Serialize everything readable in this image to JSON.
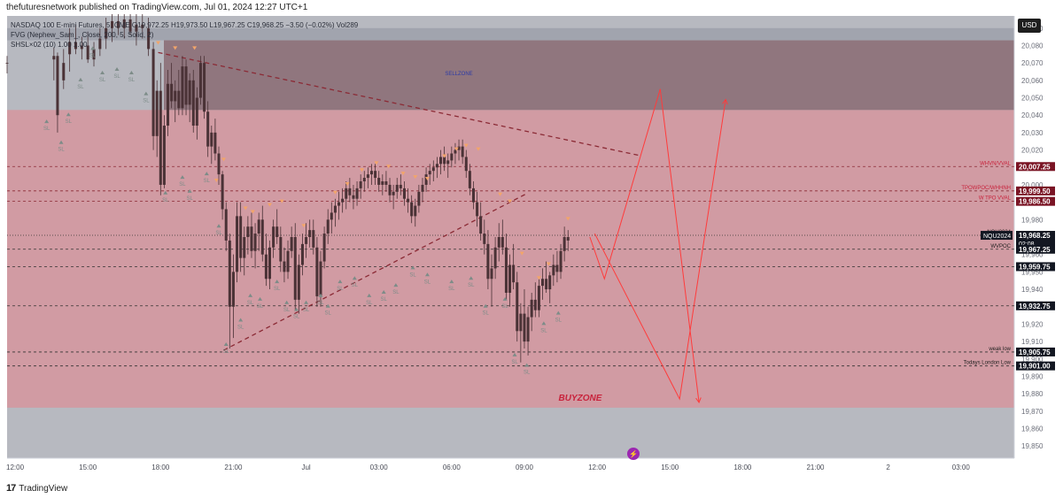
{
  "header": {
    "publisher": "thefuturesnetwork published on TradingView.com, Jul 01, 2024 12:27 UTC+1"
  },
  "legend": {
    "symbol_line": "NASDAQ 100 E-mini Futures, 5, CME  O19,972.25 H19,973.50 L19,967.25 C19,968.25 −3.50 (−0.02%) Vol289",
    "fvg_line": "FVG (Nephew_Sam_, Close, 200, 5, Solid, 2)",
    "shsl_line": "SHSL×02 (10)  1.00  1.00"
  },
  "currency": "USD",
  "footer": {
    "brand": "TradingView",
    "logo": "tradingview-logo-icon"
  },
  "colors": {
    "zone_pink": "#d19ba3",
    "sellzone_dark": "#8a6a72",
    "grey_band": "#b7b9c0",
    "candle": "#4a3236",
    "dashed_line": "#8b2a35",
    "projection": "#ff3b3b",
    "orange_marker": "#f2a56a",
    "grey_marker": "#7d8c88",
    "label_red": "#c8233c",
    "badge_dark": "#7a1424",
    "badge_black": "#131722"
  },
  "chart_data": {
    "type": "candlestick",
    "symbol": "NQU2024",
    "timeframe": "5",
    "ylim": [
      19843,
      20097
    ],
    "y_ticks": [
      20090,
      20080,
      20070,
      20060,
      20050,
      20040,
      20030,
      20020,
      20010,
      20000,
      19990,
      19980,
      19970,
      19960,
      19950,
      19940,
      19930,
      19920,
      19910,
      19900,
      19890,
      19880,
      19870,
      19860,
      19850
    ],
    "x_ticks": [
      {
        "label": "12:00",
        "t": 0
      },
      {
        "label": "15:00",
        "t": 3
      },
      {
        "label": "18:00",
        "t": 6
      },
      {
        "label": "21:00",
        "t": 9
      },
      {
        "label": "Jul",
        "t": 12
      },
      {
        "label": "03:00",
        "t": 15
      },
      {
        "label": "06:00",
        "t": 18
      },
      {
        "label": "09:00",
        "t": 21
      },
      {
        "label": "12:00",
        "t": 24
      },
      {
        "label": "15:00",
        "t": 27
      },
      {
        "label": "18:00",
        "t": 30
      },
      {
        "label": "21:00",
        "t": 33
      },
      {
        "label": "2",
        "t": 36
      },
      {
        "label": "03:00",
        "t": 39
      }
    ],
    "xlim": [
      -0.33,
      41.2
    ],
    "zones": [
      {
        "name": "SELLZONE",
        "from": 20043,
        "to": 20083
      },
      {
        "name": "BUYZONE",
        "from": 19872,
        "to": 20043
      }
    ],
    "levels": [
      {
        "label": "WHVN/VVAL",
        "price": 20010.5,
        "badge": "20,007.25"
      },
      {
        "label": "TPOWPOC/WHHNH",
        "price": 19996.5,
        "badge": "19,999.50"
      },
      {
        "label": "W TPO VVAL",
        "price": 19990.5,
        "badge": "19,986.50"
      },
      {
        "label": "NQU2024",
        "price": 19971,
        "badge": "19,968.25",
        "extra": "02:08"
      },
      {
        "label": "WVPOC",
        "price": 19963,
        "badge": "19,967.25"
      },
      {
        "label": "",
        "price": 19953,
        "badge": "19,959.75"
      },
      {
        "label": "",
        "price": 19930.5,
        "badge": "19,932.75"
      },
      {
        "label": "weak low",
        "price": 19904,
        "badge": "19,905.75"
      },
      {
        "label": "Todays London Low",
        "price": 19896,
        "badge": "19,901.00"
      }
    ],
    "trendlines": [
      {
        "from": [
          5.9,
          20076
        ],
        "to": [
          25.7,
          20017
        ]
      },
      {
        "from": [
          8.6,
          19905
        ],
        "to": [
          21.1,
          19995
        ]
      }
    ],
    "projections": [
      [
        [
          23.9,
          19972
        ],
        [
          27.4,
          19877
        ],
        [
          29.3,
          20049
        ]
      ],
      [
        [
          23.7,
          19970
        ],
        [
          24.3,
          19946
        ],
        [
          26.6,
          20055
        ],
        [
          28.2,
          19875
        ]
      ]
    ],
    "candles": [
      [
        -0.33,
        20070,
        20074,
        20064,
        20070
      ],
      [
        1.6,
        20072,
        20079,
        20060,
        20074
      ],
      [
        1.75,
        20074,
        20076,
        20030,
        20040
      ],
      [
        2.0,
        20060,
        20078,
        20055,
        20070
      ],
      [
        2.25,
        20075,
        20090,
        20065,
        20082
      ],
      [
        2.5,
        20082,
        20092,
        20075,
        20078
      ],
      [
        2.75,
        20078,
        20085,
        20072,
        20080
      ],
      [
        3.0,
        20080,
        20088,
        20070,
        20072
      ],
      [
        3.25,
        20072,
        20082,
        20068,
        20078
      ],
      [
        3.5,
        20078,
        20090,
        20074,
        20084
      ],
      [
        3.75,
        20084,
        20096,
        20078,
        20090
      ],
      [
        4.0,
        20090,
        20100,
        20082,
        20094
      ],
      [
        4.25,
        20094,
        20100,
        20086,
        20090
      ],
      [
        4.5,
        20090,
        20100,
        20084,
        20095
      ],
      [
        4.75,
        20095,
        20100,
        20086,
        20088
      ],
      [
        5.0,
        20088,
        20098,
        20080,
        20092
      ],
      [
        5.25,
        20092,
        20100,
        20084,
        20090
      ],
      [
        5.5,
        20090,
        20096,
        20074,
        20078
      ],
      [
        5.7,
        20078,
        20082,
        20020,
        20028
      ],
      [
        5.85,
        20028,
        20060,
        20016,
        20054
      ],
      [
        6.0,
        20054,
        20070,
        19994,
        20000
      ],
      [
        6.15,
        20000,
        20040,
        19998,
        20034
      ],
      [
        6.3,
        20034,
        20066,
        20028,
        20058
      ],
      [
        6.45,
        20058,
        20070,
        20044,
        20048
      ],
      [
        6.6,
        20048,
        20060,
        20036,
        20054
      ],
      [
        6.75,
        20054,
        20066,
        20040,
        20044
      ],
      [
        6.9,
        20044,
        20074,
        20040,
        20068
      ],
      [
        7.05,
        20068,
        20072,
        20040,
        20046
      ],
      [
        7.2,
        20046,
        20064,
        20036,
        20060
      ],
      [
        7.35,
        20060,
        20066,
        20030,
        20034
      ],
      [
        7.5,
        20034,
        20056,
        20026,
        20050
      ],
      [
        7.65,
        20050,
        20074,
        20046,
        20070
      ],
      [
        7.8,
        20070,
        20074,
        20038,
        20042
      ],
      [
        7.95,
        20042,
        20048,
        20016,
        20022
      ],
      [
        8.1,
        20022,
        20034,
        20012,
        20030
      ],
      [
        8.25,
        20030,
        20038,
        20014,
        20018
      ],
      [
        8.4,
        20018,
        20022,
        20000,
        20006
      ],
      [
        8.55,
        20006,
        20008,
        19980,
        19986
      ],
      [
        8.7,
        19986,
        19990,
        19962,
        19968
      ],
      [
        8.85,
        19968,
        19972,
        19906,
        19930
      ],
      [
        9.0,
        19930,
        19960,
        19912,
        19950
      ],
      [
        9.15,
        19950,
        19990,
        19944,
        19982
      ],
      [
        9.3,
        19982,
        19990,
        19950,
        19958
      ],
      [
        9.45,
        19958,
        19976,
        19948,
        19970
      ],
      [
        9.6,
        19970,
        19982,
        19960,
        19976
      ],
      [
        9.75,
        19976,
        19984,
        19958,
        19962
      ],
      [
        9.9,
        19962,
        19978,
        19952,
        19972
      ],
      [
        10.05,
        19972,
        19984,
        19962,
        19980
      ],
      [
        10.2,
        19980,
        19988,
        19956,
        19960
      ],
      [
        10.35,
        19960,
        19972,
        19942,
        19946
      ],
      [
        10.5,
        19946,
        19968,
        19940,
        19964
      ],
      [
        10.65,
        19964,
        19980,
        19958,
        19976
      ],
      [
        10.8,
        19976,
        19986,
        19966,
        19970
      ],
      [
        10.95,
        19970,
        19976,
        19950,
        19956
      ],
      [
        11.1,
        19956,
        19964,
        19944,
        19950
      ],
      [
        11.25,
        19950,
        19968,
        19946,
        19962
      ],
      [
        11.4,
        19962,
        19976,
        19958,
        19970
      ],
      [
        11.55,
        19970,
        19978,
        19928,
        19934
      ],
      [
        11.7,
        19934,
        19960,
        19926,
        19954
      ],
      [
        11.85,
        19954,
        19972,
        19948,
        19966
      ],
      [
        12.0,
        19966,
        19978,
        19958,
        19970
      ],
      [
        12.15,
        19970,
        19980,
        19964,
        19974
      ],
      [
        12.3,
        19974,
        19980,
        19960,
        19964
      ],
      [
        12.45,
        19964,
        19970,
        19930,
        19936
      ],
      [
        12.6,
        19936,
        19962,
        19930,
        19956
      ],
      [
        12.75,
        19956,
        19976,
        19952,
        19972
      ],
      [
        12.9,
        19972,
        19986,
        19966,
        19980
      ],
      [
        13.05,
        19980,
        19990,
        19972,
        19984
      ],
      [
        13.2,
        19984,
        19992,
        19976,
        19988
      ],
      [
        13.35,
        19988,
        19996,
        19980,
        19990
      ],
      [
        13.5,
        19990,
        19998,
        19984,
        19992
      ],
      [
        13.65,
        19992,
        20002,
        19986,
        19998
      ],
      [
        13.8,
        19998,
        20004,
        19990,
        19994
      ],
      [
        13.95,
        19994,
        20000,
        19986,
        19992
      ],
      [
        14.1,
        19992,
        20002,
        19988,
        19998
      ],
      [
        14.25,
        19998,
        20006,
        19992,
        20002
      ],
      [
        14.4,
        20002,
        20008,
        19996,
        20004
      ],
      [
        14.55,
        20004,
        20010,
        19998,
        20006
      ],
      [
        14.7,
        20006,
        20012,
        20000,
        20008
      ],
      [
        14.85,
        20008,
        20012,
        20000,
        20004
      ],
      [
        15.0,
        20004,
        20008,
        19996,
        20000
      ],
      [
        15.15,
        20000,
        20006,
        19994,
        20002
      ],
      [
        15.3,
        20002,
        20008,
        19996,
        20000
      ],
      [
        15.45,
        20000,
        20004,
        19990,
        19994
      ],
      [
        15.6,
        19994,
        20000,
        19986,
        19996
      ],
      [
        15.75,
        19996,
        20004,
        19992,
        20000
      ],
      [
        15.9,
        20000,
        20006,
        19994,
        19998
      ],
      [
        16.05,
        19998,
        20002,
        19988,
        19992
      ],
      [
        16.2,
        19992,
        19998,
        19984,
        19990
      ],
      [
        16.35,
        19990,
        19994,
        19978,
        19982
      ],
      [
        16.5,
        19982,
        19992,
        19976,
        19988
      ],
      [
        16.65,
        19988,
        20000,
        19984,
        19996
      ],
      [
        16.8,
        19996,
        20004,
        19990,
        20000
      ],
      [
        16.95,
        20000,
        20010,
        19996,
        20006
      ],
      [
        17.1,
        20006,
        20012,
        20000,
        20008
      ],
      [
        17.25,
        20008,
        20014,
        20002,
        20010
      ],
      [
        17.4,
        20010,
        20016,
        20004,
        20012
      ],
      [
        17.55,
        20012,
        20020,
        20006,
        20016
      ],
      [
        17.7,
        20016,
        20022,
        20008,
        20012
      ],
      [
        17.85,
        20012,
        20018,
        20004,
        20014
      ],
      [
        18.0,
        20014,
        20022,
        20010,
        20018
      ],
      [
        18.15,
        20018,
        20024,
        20012,
        20020
      ],
      [
        18.3,
        20020,
        20026,
        20014,
        20022
      ],
      [
        18.45,
        20022,
        20026,
        20012,
        20016
      ],
      [
        18.6,
        20016,
        20020,
        20004,
        20008
      ],
      [
        18.75,
        20008,
        20012,
        19994,
        19998
      ],
      [
        18.9,
        19998,
        20002,
        19986,
        19990
      ],
      [
        19.05,
        19990,
        19996,
        19976,
        19982
      ],
      [
        19.2,
        19982,
        19990,
        19968,
        19972
      ],
      [
        19.35,
        19972,
        19980,
        19960,
        19966
      ],
      [
        19.5,
        19966,
        19974,
        19940,
        19946
      ],
      [
        19.65,
        19946,
        19960,
        19930,
        19952
      ],
      [
        19.8,
        19952,
        19970,
        19946,
        19964
      ],
      [
        19.95,
        19964,
        19978,
        19956,
        19970
      ],
      [
        20.1,
        19970,
        19980,
        19960,
        19964
      ],
      [
        20.25,
        19964,
        19972,
        19934,
        19938
      ],
      [
        20.4,
        19938,
        19960,
        19930,
        19954
      ],
      [
        20.55,
        19954,
        19966,
        19940,
        19944
      ],
      [
        20.7,
        19944,
        19950,
        19910,
        19916
      ],
      [
        20.85,
        19916,
        19932,
        19898,
        19926
      ],
      [
        21.0,
        19926,
        19940,
        19906,
        19910
      ],
      [
        21.15,
        19910,
        19930,
        19902,
        19924
      ],
      [
        21.3,
        19924,
        19938,
        19916,
        19934
      ],
      [
        21.45,
        19934,
        19944,
        19924,
        19928
      ],
      [
        21.6,
        19928,
        19946,
        19924,
        19942
      ],
      [
        21.75,
        19942,
        19952,
        19934,
        19946
      ],
      [
        21.9,
        19946,
        19956,
        19938,
        19940
      ],
      [
        22.05,
        19940,
        19950,
        19932,
        19948
      ],
      [
        22.2,
        19948,
        19960,
        19942,
        19954
      ],
      [
        22.35,
        19954,
        19962,
        19944,
        19950
      ],
      [
        22.5,
        19950,
        19966,
        19946,
        19962
      ],
      [
        22.65,
        19962,
        19976,
        19956,
        19970
      ],
      [
        22.8,
        19970,
        19974,
        19962,
        19968
      ]
    ],
    "markers": {
      "orange": [
        [
          5.9,
          20081
        ],
        [
          6.6,
          20078
        ],
        [
          7.4,
          20078
        ],
        [
          8.6,
          20014
        ],
        [
          8.3,
          20002
        ],
        [
          9.5,
          19986
        ],
        [
          9.8,
          19984
        ],
        [
          10.5,
          19988
        ],
        [
          11.0,
          19990
        ],
        [
          11.9,
          19976
        ],
        [
          13.2,
          19995
        ],
        [
          13.7,
          20000
        ],
        [
          14.3,
          20008
        ],
        [
          14.9,
          20012
        ],
        [
          15.4,
          20010
        ],
        [
          16.0,
          20006
        ],
        [
          16.5,
          20004
        ],
        [
          17.0,
          20003
        ],
        [
          17.7,
          20016
        ],
        [
          18.2,
          20020
        ],
        [
          18.6,
          20022
        ],
        [
          19.1,
          20020
        ],
        [
          20.0,
          19994
        ],
        [
          20.4,
          19990
        ],
        [
          20.9,
          19960
        ],
        [
          21.6,
          19946
        ],
        [
          22.0,
          19954
        ],
        [
          22.8,
          19980
        ]
      ],
      "grey": [
        [
          1.3,
          20036
        ],
        [
          1.9,
          20024
        ],
        [
          2.2,
          20040
        ],
        [
          2.7,
          20060
        ],
        [
          3.2,
          20078
        ],
        [
          3.6,
          20064
        ],
        [
          4.2,
          20066
        ],
        [
          4.8,
          20064
        ],
        [
          5.4,
          20052
        ],
        [
          6.2,
          19995
        ],
        [
          6.9,
          20004
        ],
        [
          7.2,
          19996
        ],
        [
          7.9,
          20006
        ],
        [
          8.4,
          19976
        ],
        [
          8.7,
          19908
        ],
        [
          9.3,
          19922
        ],
        [
          9.7,
          19936
        ],
        [
          10.1,
          19934
        ],
        [
          10.8,
          19944
        ],
        [
          11.2,
          19932
        ],
        [
          11.6,
          19928
        ],
        [
          12.0,
          19932
        ],
        [
          12.6,
          19936
        ],
        [
          12.9,
          19930
        ],
        [
          13.4,
          19944
        ],
        [
          14.0,
          19946
        ],
        [
          14.6,
          19936
        ],
        [
          15.2,
          19938
        ],
        [
          15.7,
          19942
        ],
        [
          16.4,
          19952
        ],
        [
          17.0,
          19948
        ],
        [
          18.0,
          19944
        ],
        [
          18.8,
          19946
        ],
        [
          19.4,
          19930
        ],
        [
          20.2,
          19934
        ],
        [
          20.6,
          19902
        ],
        [
          21.1,
          19896
        ],
        [
          21.8,
          19920
        ],
        [
          22.4,
          19926
        ]
      ]
    }
  }
}
